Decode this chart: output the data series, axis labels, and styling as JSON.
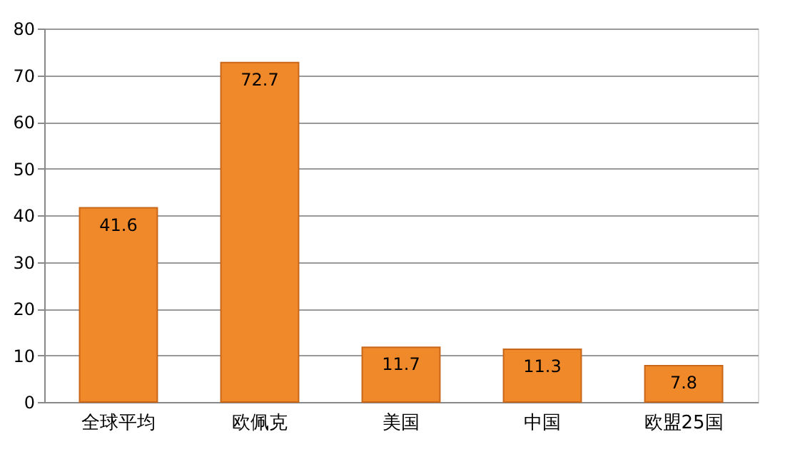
{
  "chart_data": {
    "type": "bar",
    "categories": [
      "全球平均",
      "欧佩克",
      "美国",
      "中国",
      "欧盟25国"
    ],
    "values": [
      41.6,
      72.7,
      11.7,
      11.3,
      7.8
    ],
    "color": "#f0892a",
    "ylim": [
      0,
      80
    ],
    "yticks": [
      0,
      10,
      20,
      30,
      40,
      50,
      60,
      70,
      80
    ],
    "grid": "y",
    "data_labels": true
  }
}
